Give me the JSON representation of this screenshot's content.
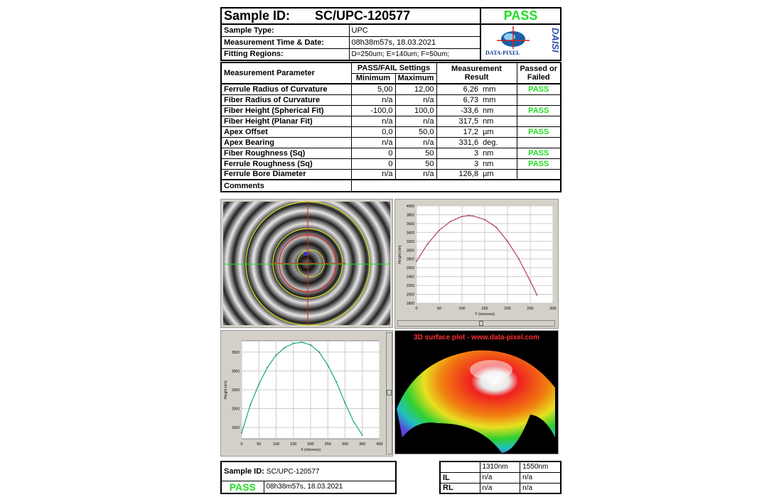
{
  "header": {
    "sample_id_label": "Sample ID:",
    "sample_id": "SC/UPC-120577",
    "status": "PASS",
    "rows": [
      {
        "label": "Sample Type:",
        "value": "UPC"
      },
      {
        "label": "Measurement Time & Date:",
        "value": "08h38m57s,  18.03.2021"
      },
      {
        "label": "Fitting Regions:",
        "value": "D=250um;   E=140um;   F=50um;"
      }
    ],
    "logo_text": "DATA-PIXEL",
    "logo_brand": "DAISI"
  },
  "table": {
    "headers": {
      "parameter": "Measurement Parameter",
      "settings": "PASS/FAIL Settings",
      "min": "Minimum",
      "max": "Maximum",
      "result": "Measurement Result",
      "passed": "Passed or Failed"
    },
    "rows": [
      {
        "name": "Ferrule Radius of Curvature",
        "min": "5,00",
        "max": "12,00",
        "value": "6,26",
        "unit": "mm",
        "status": "PASS"
      },
      {
        "name": "Fiber Radius of Curvature",
        "min": "n/a",
        "max": "n/a",
        "value": "6,73",
        "unit": "mm",
        "status": ""
      },
      {
        "name": "Fiber Height (Spherical Fit)",
        "min": "-100,0",
        "max": "100,0",
        "value": "-33,6",
        "unit": "nm",
        "status": "PASS"
      },
      {
        "name": "Fiber Height (Planar Fit)",
        "min": "n/a",
        "max": "n/a",
        "value": "317,5",
        "unit": "nm",
        "status": ""
      },
      {
        "name": "Apex Offset",
        "min": "0,0",
        "max": "50,0",
        "value": "17,2",
        "unit": "µm",
        "status": "PASS"
      },
      {
        "name": "Apex Bearing",
        "min": "n/a",
        "max": "n/a",
        "value": "331,6",
        "unit": "deg.",
        "status": ""
      },
      {
        "name": "Fiber Roughness (Sq)",
        "min": "0",
        "max": "50",
        "value": "3",
        "unit": "nm",
        "status": "PASS"
      },
      {
        "name": "Ferrule Roughness (Sq)",
        "min": "0",
        "max": "50",
        "value": "3",
        "unit": "nm",
        "status": "PASS"
      },
      {
        "name": "Ferrule Bore Diameter",
        "min": "n/a",
        "max": "n/a",
        "value": "126,8",
        "unit": "µm",
        "status": ""
      }
    ],
    "comments_label": "Comments"
  },
  "surface_plot_title": "3D surface plot - www.data-pixel.com",
  "chart_data": [
    {
      "type": "line",
      "xlabel": "Y (microns)",
      "ylabel": "Height (nm)",
      "xlim": [
        0,
        300
      ],
      "ylim": [
        1800,
        4000
      ],
      "xticks": [
        0,
        50,
        100,
        150,
        200,
        250,
        300
      ],
      "yticks": [
        1800,
        2000,
        2200,
        2400,
        2600,
        2800,
        3000,
        3200,
        3400,
        3600,
        3800,
        4000
      ],
      "grid": true,
      "fit_color": "#e05070",
      "points_color": "#333333",
      "x": [
        0,
        25,
        50,
        75,
        100,
        115,
        125,
        150,
        175,
        200,
        225,
        250,
        265
      ],
      "y": [
        2750,
        3150,
        3450,
        3650,
        3760,
        3780,
        3770,
        3690,
        3520,
        3200,
        2800,
        2300,
        1980
      ]
    },
    {
      "type": "line",
      "xlabel": "X (microns)",
      "ylabel": "Height (nm)",
      "xlim": [
        0,
        400
      ],
      "ylim": [
        1200,
        3800
      ],
      "xticks": [
        0,
        50,
        100,
        150,
        200,
        250,
        300,
        350,
        400
      ],
      "yticks": [
        1500,
        2000,
        2500,
        3000,
        3500
      ],
      "grid": true,
      "fit_color": "#20d0a0",
      "points_color": "#333333",
      "x": [
        0,
        25,
        50,
        75,
        100,
        125,
        150,
        175,
        200,
        225,
        250,
        275,
        300,
        325,
        350
      ],
      "y": [
        1350,
        2100,
        2650,
        3100,
        3420,
        3620,
        3730,
        3760,
        3690,
        3500,
        3150,
        2700,
        2150,
        1650,
        1300
      ]
    }
  ],
  "footer": {
    "sample_id_label": "Sample ID:",
    "sample_id": "SC/UPC-120577",
    "status": "PASS",
    "datetime": "08h38m57s,  18.03.2021",
    "loss": {
      "cols": [
        "1310nm",
        "1550nm"
      ],
      "rows": [
        {
          "label": "IL",
          "v1": "n/a",
          "v2": "n/a"
        },
        {
          "label": "RL",
          "v1": "n/a",
          "v2": "n/a"
        }
      ]
    }
  }
}
